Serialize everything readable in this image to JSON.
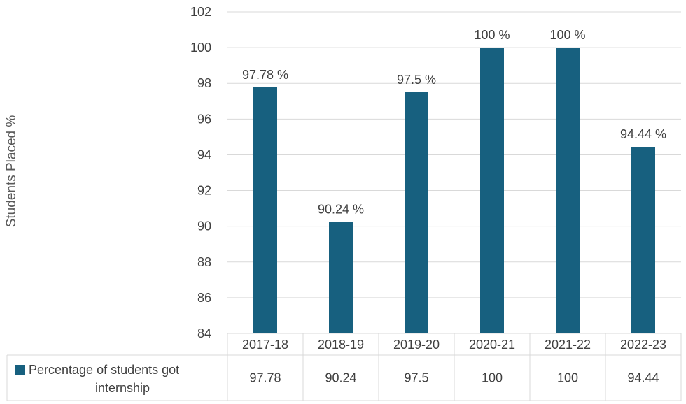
{
  "chart_data": {
    "type": "bar",
    "ylabel": "Students Placed %",
    "xlabel": "",
    "ylim": [
      84,
      102
    ],
    "yticks": [
      84,
      86,
      88,
      90,
      92,
      94,
      96,
      98,
      100,
      102
    ],
    "grid": true,
    "categories": [
      "2017-18",
      "2018-19",
      "2019-20",
      "2020-21",
      "2021-22",
      "2022-23"
    ],
    "series": [
      {
        "name": "Percentage of students got internship",
        "values": [
          97.78,
          90.24,
          97.5,
          100,
          100,
          94.44
        ],
        "color": "#17607f"
      }
    ],
    "data_labels": [
      "97.78 %",
      "90.24 %",
      "97.5 %",
      "100 %",
      "100 %",
      "94.44 %"
    ],
    "data_table": {
      "row_label_line1": "Percentage of students got",
      "row_label_line2": "internship",
      "values": [
        "97.78",
        "90.24",
        "97.5",
        "100",
        "100",
        "94.44"
      ]
    },
    "legend": "data-table"
  }
}
